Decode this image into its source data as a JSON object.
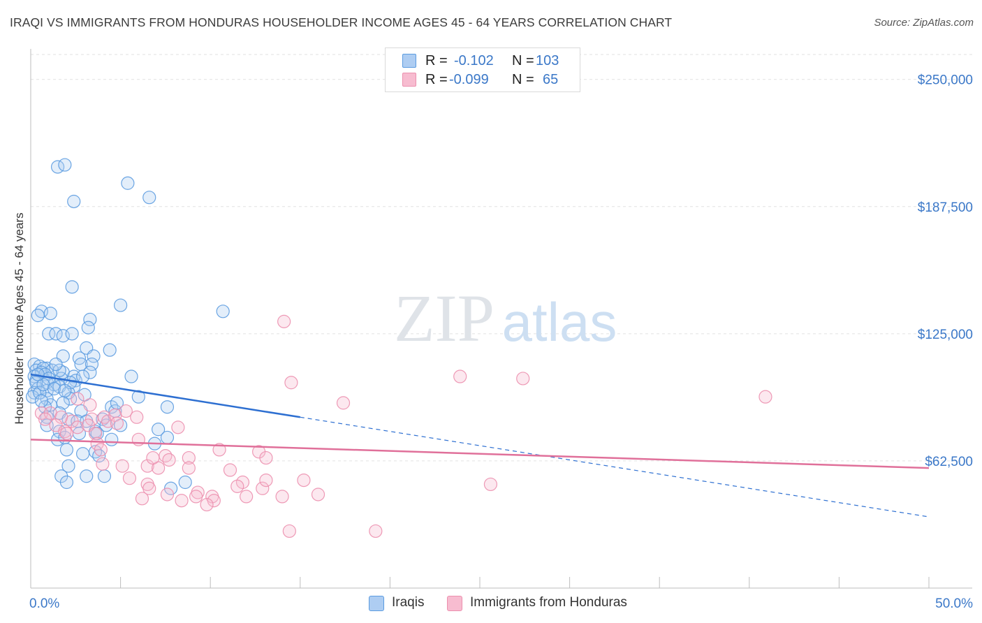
{
  "header": {
    "title": "IRAQI VS IMMIGRANTS FROM HONDURAS HOUSEHOLDER INCOME AGES 45 - 64 YEARS CORRELATION CHART",
    "source": "Source: ZipAtlas.com"
  },
  "watermark": {
    "part1": "ZIP",
    "part2": "atlas"
  },
  "stats": {
    "rows": [
      {
        "r_label": "R =",
        "r_value": "-0.102",
        "n_label": "N =",
        "n_value": "103",
        "color": "#aecdf2"
      },
      {
        "r_label": "R =",
        "r_value": "-0.099",
        "n_label": "N =",
        "n_value": "65",
        "color": "#f7bcd0"
      }
    ]
  },
  "legend": {
    "items": [
      {
        "label": "Iraqis",
        "color": "#aecdf2"
      },
      {
        "label": "Immigrants from Honduras",
        "color": "#f7bcd0"
      }
    ]
  },
  "chart_data": {
    "type": "scatter",
    "title": "IRAQI VS IMMIGRANTS FROM HONDURAS HOUSEHOLDER INCOME AGES 45 - 64 YEARS CORRELATION CHART",
    "ylabel": "Householder Income Ages 45 - 64 years",
    "xlabel": "",
    "xlim": [
      0,
      50
    ],
    "ylim": [
      0,
      265000
    ],
    "x_tick_labels": [
      "0.0%",
      "50.0%"
    ],
    "y_ticks": [
      {
        "value": 62500,
        "label": "$62,500"
      },
      {
        "value": 125000,
        "label": "$125,000"
      },
      {
        "value": 187500,
        "label": "$187,500"
      },
      {
        "value": 250000,
        "label": "$250,000"
      }
    ],
    "grid": true,
    "colors": {
      "iraqi": "#5b9be0",
      "honduras": "#ec8fae",
      "iraqi_line": "#2d6fd1",
      "honduras_line": "#e0709a",
      "tick_text": "#3b78c8"
    },
    "series": [
      {
        "name": "Iraqis",
        "trend": {
          "x_start": 0,
          "y_start": 105000,
          "x_solid_end": 15,
          "x_end": 50,
          "y_end": 35000
        },
        "points": [
          [
            1.5,
            207000
          ],
          [
            1.9,
            208000
          ],
          [
            2.4,
            190000
          ],
          [
            5.4,
            199000
          ],
          [
            6.6,
            192000
          ],
          [
            2.3,
            148000
          ],
          [
            5.0,
            139000
          ],
          [
            10.7,
            136000
          ],
          [
            0.6,
            136000
          ],
          [
            1.1,
            135000
          ],
          [
            0.4,
            134000
          ],
          [
            3.3,
            132000
          ],
          [
            3.2,
            128000
          ],
          [
            1.0,
            125000
          ],
          [
            1.4,
            125000
          ],
          [
            1.8,
            124000
          ],
          [
            2.3,
            125000
          ],
          [
            3.1,
            118000
          ],
          [
            4.4,
            117000
          ],
          [
            1.8,
            114000
          ],
          [
            2.7,
            113000
          ],
          [
            3.5,
            114000
          ],
          [
            0.2,
            110000
          ],
          [
            0.5,
            109000
          ],
          [
            0.9,
            108000
          ],
          [
            2.8,
            110000
          ],
          [
            3.4,
            110000
          ],
          [
            0.3,
            107000
          ],
          [
            0.7,
            108000
          ],
          [
            0.6,
            106000
          ],
          [
            1.2,
            107000
          ],
          [
            1.8,
            106000
          ],
          [
            0.2,
            104000
          ],
          [
            0.8,
            105000
          ],
          [
            1.7,
            103000
          ],
          [
            2.4,
            104000
          ],
          [
            3.3,
            106000
          ],
          [
            5.6,
            104000
          ],
          [
            0.3,
            102000
          ],
          [
            0.9,
            101000
          ],
          [
            1.3,
            100000
          ],
          [
            2.5,
            102000
          ],
          [
            0.4,
            98000
          ],
          [
            0.9,
            97000
          ],
          [
            1.6,
            99000
          ],
          [
            2.4,
            99000
          ],
          [
            0.2,
            96000
          ],
          [
            2.1,
            96000
          ],
          [
            0.1,
            94000
          ],
          [
            0.9,
            93000
          ],
          [
            2.2,
            93000
          ],
          [
            6.0,
            94000
          ],
          [
            1.1,
            90000
          ],
          [
            1.8,
            91000
          ],
          [
            0.8,
            89000
          ],
          [
            4.5,
            89000
          ],
          [
            4.7,
            87000
          ],
          [
            7.6,
            89000
          ],
          [
            1.6,
            86000
          ],
          [
            2.8,
            87000
          ],
          [
            0.9,
            84000
          ],
          [
            2.1,
            83000
          ],
          [
            4.0,
            83000
          ],
          [
            2.6,
            82000
          ],
          [
            3.1,
            82000
          ],
          [
            0.9,
            80000
          ],
          [
            4.2,
            80000
          ],
          [
            5.0,
            80000
          ],
          [
            7.1,
            78000
          ],
          [
            1.6,
            77000
          ],
          [
            3.6,
            77000
          ],
          [
            2.7,
            76000
          ],
          [
            3.7,
            76000
          ],
          [
            7.6,
            74000
          ],
          [
            1.5,
            73000
          ],
          [
            1.9,
            74000
          ],
          [
            4.5,
            73000
          ],
          [
            6.9,
            71000
          ],
          [
            2.0,
            68000
          ],
          [
            3.6,
            67000
          ],
          [
            2.9,
            66000
          ],
          [
            3.8,
            65000
          ],
          [
            2.1,
            60000
          ],
          [
            1.7,
            55000
          ],
          [
            3.1,
            55000
          ],
          [
            4.1,
            55000
          ],
          [
            2.0,
            52000
          ],
          [
            8.6,
            52000
          ],
          [
            7.8,
            49000
          ],
          [
            0.3,
            101000
          ],
          [
            0.5,
            96000
          ],
          [
            1.0,
            103000
          ],
          [
            1.6,
            107000
          ],
          [
            2.2,
            101000
          ],
          [
            0.7,
            100000
          ],
          [
            1.3,
            98000
          ],
          [
            0.4,
            105000
          ],
          [
            2.9,
            104000
          ],
          [
            1.9,
            97000
          ],
          [
            4.8,
            91000
          ],
          [
            3.0,
            95000
          ],
          [
            0.6,
            92000
          ],
          [
            1.4,
            110000
          ]
        ]
      },
      {
        "name": "Immigrants from Honduras",
        "trend": {
          "x_start": 0,
          "y_start": 73000,
          "x_end": 50,
          "y_end": 59000
        },
        "points": [
          [
            14.1,
            131000
          ],
          [
            23.9,
            104000
          ],
          [
            27.4,
            103000
          ],
          [
            14.5,
            101000
          ],
          [
            40.9,
            94000
          ],
          [
            17.4,
            91000
          ],
          [
            2.6,
            93000
          ],
          [
            0.6,
            86000
          ],
          [
            1.1,
            86000
          ],
          [
            3.3,
            90000
          ],
          [
            5.3,
            87000
          ],
          [
            0.8,
            83000
          ],
          [
            1.7,
            84000
          ],
          [
            2.3,
            82000
          ],
          [
            3.4,
            83000
          ],
          [
            4.1,
            84000
          ],
          [
            4.3,
            82000
          ],
          [
            4.7,
            85000
          ],
          [
            5.9,
            84000
          ],
          [
            1.4,
            80000
          ],
          [
            2.6,
            79000
          ],
          [
            3.2,
            80000
          ],
          [
            4.8,
            81000
          ],
          [
            8.2,
            79000
          ],
          [
            1.9,
            77000
          ],
          [
            2.0,
            76000
          ],
          [
            3.6,
            76000
          ],
          [
            6.0,
            73000
          ],
          [
            3.7,
            71000
          ],
          [
            3.9,
            68000
          ],
          [
            10.5,
            68000
          ],
          [
            12.7,
            67000
          ],
          [
            7.5,
            65000
          ],
          [
            8.8,
            64000
          ],
          [
            13.1,
            64000
          ],
          [
            4.0,
            61000
          ],
          [
            5.1,
            60000
          ],
          [
            6.5,
            60000
          ],
          [
            7.1,
            59000
          ],
          [
            8.8,
            59000
          ],
          [
            11.1,
            58000
          ],
          [
            5.5,
            54000
          ],
          [
            6.5,
            51000
          ],
          [
            6.6,
            49000
          ],
          [
            9.3,
            47000
          ],
          [
            9.2,
            45000
          ],
          [
            10.1,
            45000
          ],
          [
            10.2,
            43000
          ],
          [
            7.6,
            46000
          ],
          [
            11.8,
            52000
          ],
          [
            11.5,
            50000
          ],
          [
            12.0,
            45000
          ],
          [
            12.9,
            49000
          ],
          [
            15.2,
            53000
          ],
          [
            14.0,
            45000
          ],
          [
            16.0,
            46000
          ],
          [
            6.2,
            44000
          ],
          [
            8.4,
            43000
          ],
          [
            9.8,
            41000
          ],
          [
            13.1,
            53000
          ],
          [
            25.6,
            51000
          ],
          [
            14.4,
            28000
          ],
          [
            19.2,
            28000
          ],
          [
            7.7,
            63000
          ],
          [
            6.8,
            64000
          ]
        ]
      }
    ]
  }
}
